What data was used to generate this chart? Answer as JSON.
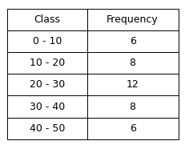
{
  "headers": [
    "Class",
    "Frequency"
  ],
  "rows": [
    [
      "0 - 10",
      "6"
    ],
    [
      "10 - 20",
      "8"
    ],
    [
      "20 - 30",
      "12"
    ],
    [
      "30 - 40",
      "8"
    ],
    [
      "40 - 50",
      "6"
    ]
  ],
  "background_color": "#ffffff",
  "header_bg": "#ffffff",
  "cell_bg": "#ffffff",
  "border_color": "#000000",
  "text_color": "#000000",
  "header_fontsize": 9,
  "cell_fontsize": 9,
  "fig_width": 2.32,
  "fig_height": 1.81,
  "dpi": 100
}
